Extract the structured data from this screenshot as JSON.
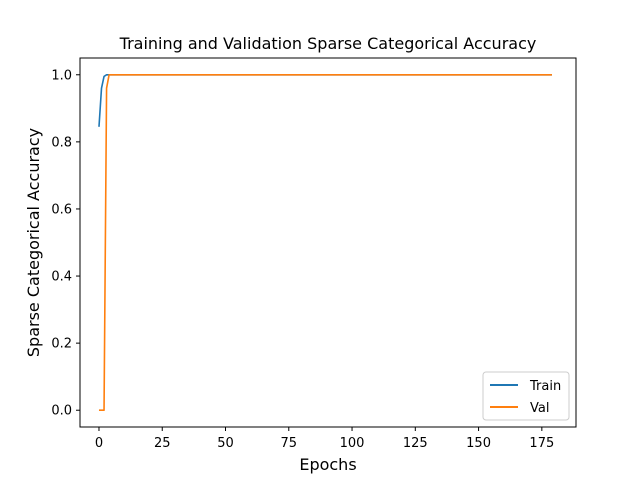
{
  "chart_data": {
    "type": "line",
    "title": "Training and Validation Sparse Categorical Accuracy",
    "xlabel": "Epochs",
    "ylabel": "Sparse Categorical Accuracy",
    "xlim": [
      -7.5,
      188.5
    ],
    "ylim": [
      -0.05,
      1.05
    ],
    "xticks": [
      0,
      25,
      50,
      75,
      100,
      125,
      150,
      175
    ],
    "yticks": [
      0.0,
      0.2,
      0.4,
      0.6,
      0.8,
      1.0
    ],
    "ytick_labels": [
      "0.0",
      "0.2",
      "0.4",
      "0.6",
      "0.8",
      "1.0"
    ],
    "legend_position": "lower-right",
    "grid": false,
    "series": [
      {
        "name": "Train",
        "color": "#1f77b4",
        "x": [
          0,
          1,
          2,
          3,
          4,
          179
        ],
        "y": [
          0.845,
          0.96,
          0.995,
          1.0,
          1.0,
          1.0
        ]
      },
      {
        "name": "Val",
        "color": "#ff7f0e",
        "x": [
          0,
          1,
          2,
          3,
          4,
          179
        ],
        "y": [
          0.0,
          0.0,
          0.0,
          0.96,
          1.0,
          1.0
        ]
      }
    ]
  }
}
